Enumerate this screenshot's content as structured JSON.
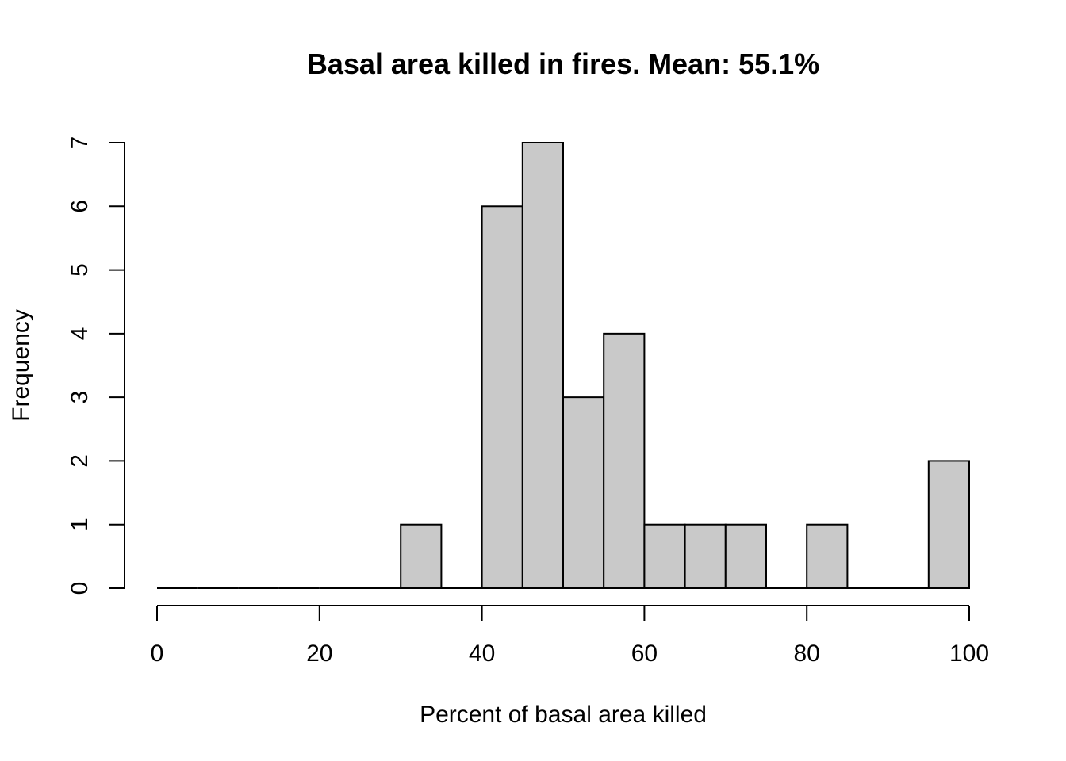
{
  "chart_data": {
    "type": "bar",
    "title": "Basal area killed in fires. Mean: 55.1%",
    "xlabel": "Percent of basal area killed",
    "ylabel": "Frequency",
    "bin_edges": [
      0,
      5,
      10,
      15,
      20,
      25,
      30,
      35,
      40,
      45,
      50,
      55,
      60,
      65,
      70,
      75,
      80,
      85,
      90,
      95,
      100
    ],
    "values": [
      0,
      0,
      0,
      0,
      0,
      0,
      1,
      0,
      6,
      7,
      3,
      4,
      1,
      1,
      1,
      0,
      1,
      0,
      0,
      2
    ],
    "xlim": [
      0,
      100
    ],
    "ylim": [
      0,
      7
    ],
    "x_ticks": [
      "0",
      "20",
      "40",
      "60",
      "80",
      "100"
    ],
    "y_ticks": [
      "0",
      "1",
      "2",
      "3",
      "4",
      "5",
      "6",
      "7"
    ],
    "grid": false,
    "legend": "none",
    "colors": {
      "bar_fill": "#c9c9c9",
      "bar_stroke": "#000000"
    }
  }
}
